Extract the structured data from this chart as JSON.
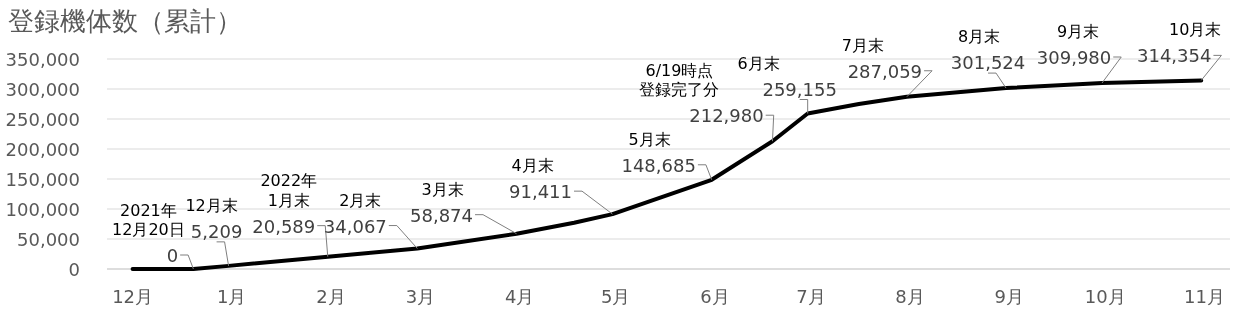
{
  "chart_data": {
    "type": "line",
    "title": "登録機体数（累計）",
    "x": [
      "2021-12-01",
      "2021-12-20",
      "2021-12-31",
      "2022-01-31",
      "2022-02-28",
      "2022-03-31",
      "2022-04-18",
      "2022-04-30",
      "2022-05-31",
      "2022-06-19",
      "2022-06-30",
      "2022-07-16",
      "2022-07-31",
      "2022-08-31",
      "2022-09-30",
      "2022-10-31"
    ],
    "series": [
      {
        "color": "#000000",
        "values": [
          0,
          0,
          5209,
          20589,
          34067,
          58874,
          77000,
          91411,
          148685,
          212980,
          259155,
          275000,
          287059,
          301524,
          309980,
          314354
        ],
        "value_labels": [
          null,
          "0",
          "5,209",
          "20,589",
          "34,067",
          "58,874",
          null,
          "91,411",
          "148,685",
          "212,980",
          "259,155",
          null,
          "287,059",
          "301,524",
          "309,980",
          "314,354"
        ]
      }
    ],
    "annotations": [
      "2021年",
      {
        "text": "12月20日",
        "x": "2021-12-20",
        "y": 0
      },
      "12月末",
      "2022年",
      {
        "text": "1月末",
        "x": "2022-01-31",
        "y": 20589
      },
      {
        "text": "2月末",
        "x": "2022-02-28",
        "y": 34067
      },
      {
        "text": "3月末",
        "x": "2022-03-31",
        "y": 58874
      },
      "4月末",
      "5月末",
      "6/19時点",
      "登録完了分",
      "6月末",
      {
        "text": "7月末",
        "x": "2022-07-31",
        "y": 287059
      },
      {
        "text": "8月末",
        "x": "2022-08-31",
        "y": 301524
      },
      {
        "text": "9月末",
        "x": "2022-09-30",
        "y": 309980
      },
      {
        "text": "10月末",
        "x": "2022-10-31",
        "y": 314354
      }
    ],
    "xlim": [
      "2021-11-23",
      "2022-11-09"
    ],
    "xticks": [
      {
        "value": "2021-12-01",
        "label": "12月"
      },
      {
        "value": "2022-01-01",
        "label": "1月"
      },
      {
        "value": "2022-02-01",
        "label": "2月"
      },
      {
        "value": "2022-03-01",
        "label": "3月"
      },
      {
        "value": "2022-04-01",
        "label": "4月"
      },
      {
        "value": "2022-05-01",
        "label": "5月"
      },
      {
        "value": "2022-06-01",
        "label": "6月"
      },
      {
        "value": "2022-07-01",
        "label": "7月"
      },
      {
        "value": "2022-08-01",
        "label": "8月"
      },
      {
        "value": "2022-09-01",
        "label": "9月"
      },
      {
        "value": "2022-10-01",
        "label": "10月"
      },
      {
        "value": "2022-11-01",
        "label": "11月"
      }
    ],
    "ylim": [
      0,
      350000
    ],
    "yticks": [
      {
        "value": 0,
        "label": "0"
      },
      {
        "value": 50000,
        "label": "50,000"
      },
      {
        "value": 100000,
        "label": "100,000"
      },
      {
        "value": 150000,
        "label": "150,000"
      },
      {
        "value": 200000,
        "label": "200,000"
      },
      {
        "value": 250000,
        "label": "250,000"
      },
      {
        "value": 300000,
        "label": "300,000"
      },
      {
        "value": 350000,
        "label": "350,000"
      }
    ],
    "grid": "y"
  }
}
